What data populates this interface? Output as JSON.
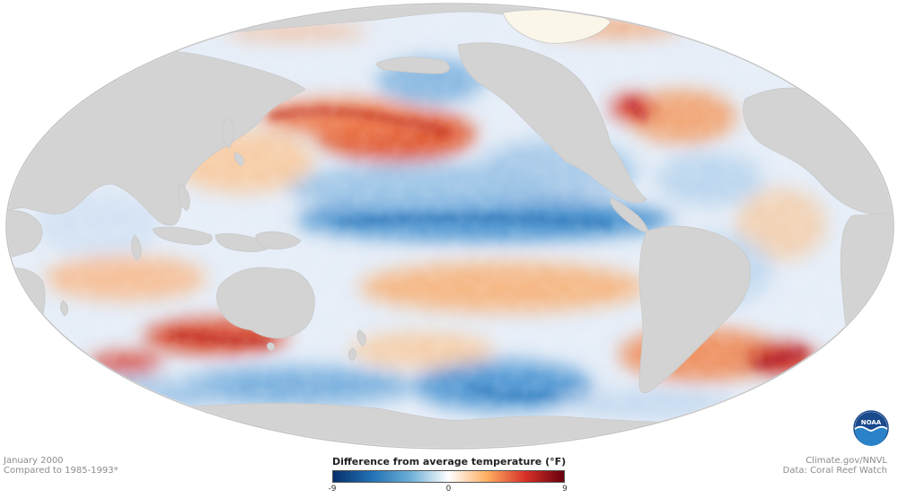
{
  "map": {
    "projection": "Mollweide, Pacific-centred",
    "ocean_anomaly_pattern": [
      "Cool band along equatorial central/eastern Pacific",
      "Warm North Pacific (Kuroshio extension)",
      "Warm band South Pacific subtropics",
      "Warm South Indian Ocean west of Australia",
      "Warm North Atlantic near New England",
      "Warm South Atlantic off South America",
      "Cool Southern Ocean south of Australia and Pacific"
    ],
    "land_color": "#d3d3d3",
    "outline_color": "#bfbfbf"
  },
  "date": {
    "line1": "January 2000",
    "line2": "Compared to 1985-1993*"
  },
  "legend": {
    "title": "Difference from average temperature (°F)",
    "min_label": "-9",
    "mid_label": "0",
    "max_label": "9",
    "colors": [
      "#08306b",
      "#2171b5",
      "#6baed6",
      "#ffffff",
      "#fdae61",
      "#d73027",
      "#67000d"
    ]
  },
  "credit": {
    "line1": "Climate.gov/NNVL",
    "line2": "Data: Coral Reef Watch"
  },
  "logo": {
    "name": "NOAA",
    "primary_color": "#1a4a8c",
    "secondary_color": "#2a82c8"
  }
}
